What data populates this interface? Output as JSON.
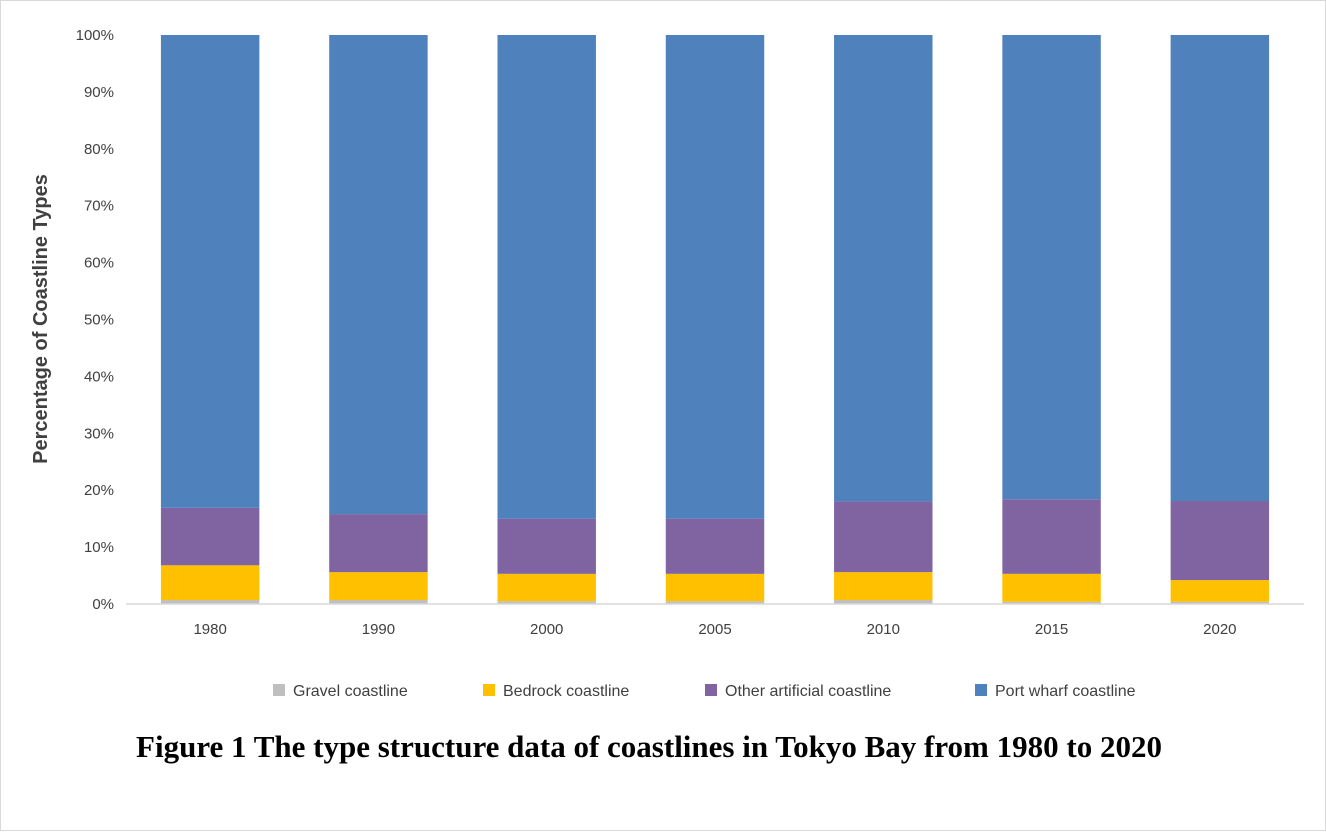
{
  "caption": "Figure 1 The type structure data of coastlines in Tokyo Bay from 1980 to 2020",
  "chart_data": {
    "type": "bar",
    "stacked": true,
    "percent": true,
    "categories": [
      "1980",
      "1990",
      "2000",
      "2005",
      "2010",
      "2015",
      "2020"
    ],
    "series": [
      {
        "name": "Gravel coastline",
        "color": "#BFBFBF",
        "values": [
          0.7,
          0.7,
          0.5,
          0.5,
          0.7,
          0.4,
          0.4
        ]
      },
      {
        "name": "Bedrock coastline",
        "color": "#FFC000",
        "values": [
          6.1,
          4.9,
          4.8,
          4.8,
          4.9,
          4.9,
          3.8
        ]
      },
      {
        "name": "Other artificial coastline",
        "color": "#8064A2",
        "values": [
          10.1,
          10.2,
          9.7,
          9.7,
          12.4,
          13.1,
          13.9
        ]
      },
      {
        "name": "Port wharf coastline",
        "color": "#4F81BD",
        "values": [
          83.1,
          84.2,
          85.0,
          85.0,
          82.0,
          81.6,
          81.9
        ]
      }
    ],
    "ylabel": "Percentage of Coastline Types",
    "ylim": [
      0,
      100
    ],
    "yticks": [
      "0%",
      "10%",
      "20%",
      "30%",
      "40%",
      "50%",
      "60%",
      "70%",
      "80%",
      "90%",
      "100%"
    ],
    "grid": false,
    "legend_position": "bottom"
  }
}
